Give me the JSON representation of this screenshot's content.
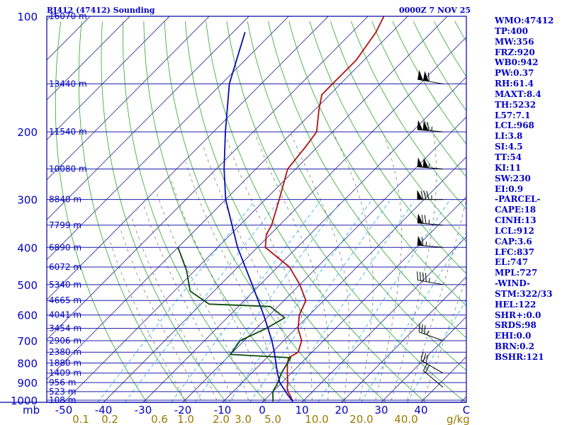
{
  "header": {
    "station": "RJ412 (47412) Sounding",
    "time": "0000Z  7 NOV 25"
  },
  "sidebar": {
    "items": [
      "WMO:47412",
      "TP:400",
      "MW:356",
      "FRZ:920",
      "WB0:942",
      "PW:0.37",
      "RH:61.4",
      "MAXT:8.4",
      "TH:5232",
      "L57:7.1",
      "LCL:968",
      "LI:3.8",
      "SI:4.5",
      "TT:54",
      "KI:11",
      "SW:230",
      "EI:0.9",
      "-PARCEL-",
      "CAPE:18",
      "CINH:13",
      "LCL:912",
      "CAP:3.6",
      "LFC:837",
      "EL:747",
      "MPL:727",
      "-WIND-",
      "STM:322/33",
      "HEL:122",
      "SHR+:0.0",
      "SRDS:98",
      "EHI:0.0",
      "BRN:0.2",
      "BSHR:121"
    ]
  },
  "colors": {
    "axis": "#0000a0",
    "isobar": "#1c1ca8",
    "isotherm": "#3a3a9a",
    "dry_adiabat": "#2aa52a",
    "moist_adiabat": "#6e6e5a",
    "mixing_ratio": "#22aaee",
    "temperature": "#b01010",
    "dewpoint": "#0a4a0a",
    "parcel": "#0a0ab0",
    "mixratio_label": "#9a7a00",
    "text": "#0000c8"
  },
  "chart_data": {
    "type": "line",
    "title": "",
    "xlabel": "C",
    "ylabel": "mb",
    "x_ticks": [
      -50,
      -40,
      -30,
      -20,
      -10,
      0,
      10,
      20,
      30,
      40
    ],
    "x_tick_labels": [
      "-50",
      "-40",
      "-30",
      "-20",
      "-10",
      "0",
      "10",
      "20",
      "30",
      "40"
    ],
    "xlabel_right": "C",
    "pressure_ticks": [
      100,
      200,
      300,
      400,
      500,
      600,
      700,
      800,
      900,
      1000
    ],
    "pressure_label": "mb",
    "height_labels": [
      {
        "p": 100,
        "label": "16070 m"
      },
      {
        "p": 150,
        "label": "13440 m"
      },
      {
        "p": 200,
        "label": "11540 m"
      },
      {
        "p": 250,
        "label": "10080 m"
      },
      {
        "p": 300,
        "label": "8840 m"
      },
      {
        "p": 350,
        "label": "7799 m"
      },
      {
        "p": 400,
        "label": "6890 m"
      },
      {
        "p": 450,
        "label": "6072 m"
      },
      {
        "p": 500,
        "label": "5340 m"
      },
      {
        "p": 550,
        "label": "4665 m"
      },
      {
        "p": 600,
        "label": "4041 m"
      },
      {
        "p": 650,
        "label": "3454 m"
      },
      {
        "p": 700,
        "label": "2906 m"
      },
      {
        "p": 750,
        "label": "2380 m"
      },
      {
        "p": 800,
        "label": "1880 m"
      },
      {
        "p": 850,
        "label": "1409 m"
      },
      {
        "p": 900,
        "label": "956 m"
      },
      {
        "p": 950,
        "label": "523 m"
      },
      {
        "p": 1000,
        "label": "108 m"
      }
    ],
    "mixing_ratio_labels": [
      "0.1",
      "0.2",
      "0.6",
      "1.0",
      "2.0",
      "3.0",
      "5.0",
      "10.0",
      "20.0",
      "40.0"
    ],
    "mixing_ratio_unit": "g/kg",
    "series": [
      {
        "kind": "temperature",
        "points": [
          [
            1008,
            7.5
          ],
          [
            975,
            5.5
          ],
          [
            950,
            3.8
          ],
          [
            925,
            2.5
          ],
          [
            900,
            1.5
          ],
          [
            850,
            -1.0
          ],
          [
            800,
            -3.5
          ],
          [
            775,
            -4.5
          ],
          [
            750,
            -3.5
          ],
          [
            700,
            -5.5
          ],
          [
            650,
            -9.5
          ],
          [
            600,
            -12.5
          ],
          [
            550,
            -14.5
          ],
          [
            500,
            -20.0
          ],
          [
            450,
            -27.0
          ],
          [
            400,
            -38.0
          ],
          [
            370,
            -41.0
          ],
          [
            350,
            -42.0
          ],
          [
            300,
            -46.5
          ],
          [
            250,
            -52.0
          ],
          [
            220,
            -53.0
          ],
          [
            200,
            -54.0
          ],
          [
            175,
            -59.0
          ],
          [
            160,
            -62.0
          ],
          [
            150,
            -62.0
          ],
          [
            130,
            -62.0
          ],
          [
            110,
            -64.0
          ],
          [
            100,
            -66.0
          ]
        ]
      },
      {
        "kind": "dewpoint",
        "points": [
          [
            1008,
            2.5
          ],
          [
            950,
            0.0
          ],
          [
            900,
            -1.0
          ],
          [
            850,
            -2.5
          ],
          [
            775,
            -4.0
          ],
          [
            760,
            -20.0
          ],
          [
            700,
            -21.0
          ],
          [
            650,
            -17.5
          ],
          [
            610,
            -15.5
          ],
          [
            570,
            -22.0
          ],
          [
            562,
            -38.0
          ],
          [
            520,
            -46.0
          ],
          [
            460,
            -52.0
          ],
          [
            400,
            -60.0
          ]
        ]
      },
      {
        "kind": "parcel",
        "points": [
          [
            1008,
            7.5
          ],
          [
            968,
            4.5
          ],
          [
            900,
            -0.5
          ],
          [
            850,
            -3.5
          ],
          [
            750,
            -9.5
          ],
          [
            700,
            -13.0
          ],
          [
            600,
            -21.5
          ],
          [
            500,
            -32.0
          ],
          [
            400,
            -45.0
          ],
          [
            300,
            -60.0
          ],
          [
            250,
            -68.0
          ],
          [
            200,
            -77.0
          ],
          [
            150,
            -88.0
          ],
          [
            110,
            -97.0
          ]
        ]
      }
    ],
    "wind_barbs": [
      {
        "p": 150,
        "dir": 280,
        "spd": 110
      },
      {
        "p": 200,
        "dir": 275,
        "spd": 115
      },
      {
        "p": 250,
        "dir": 275,
        "spd": 105
      },
      {
        "p": 300,
        "dir": 270,
        "spd": 85
      },
      {
        "p": 350,
        "dir": 275,
        "spd": 75
      },
      {
        "p": 400,
        "dir": 275,
        "spd": 65
      },
      {
        "p": 500,
        "dir": 280,
        "spd": 45
      },
      {
        "p": 700,
        "dir": 290,
        "spd": 35
      },
      {
        "p": 850,
        "dir": 300,
        "spd": 30
      },
      {
        "p": 925,
        "dir": 310,
        "spd": 20
      }
    ]
  }
}
